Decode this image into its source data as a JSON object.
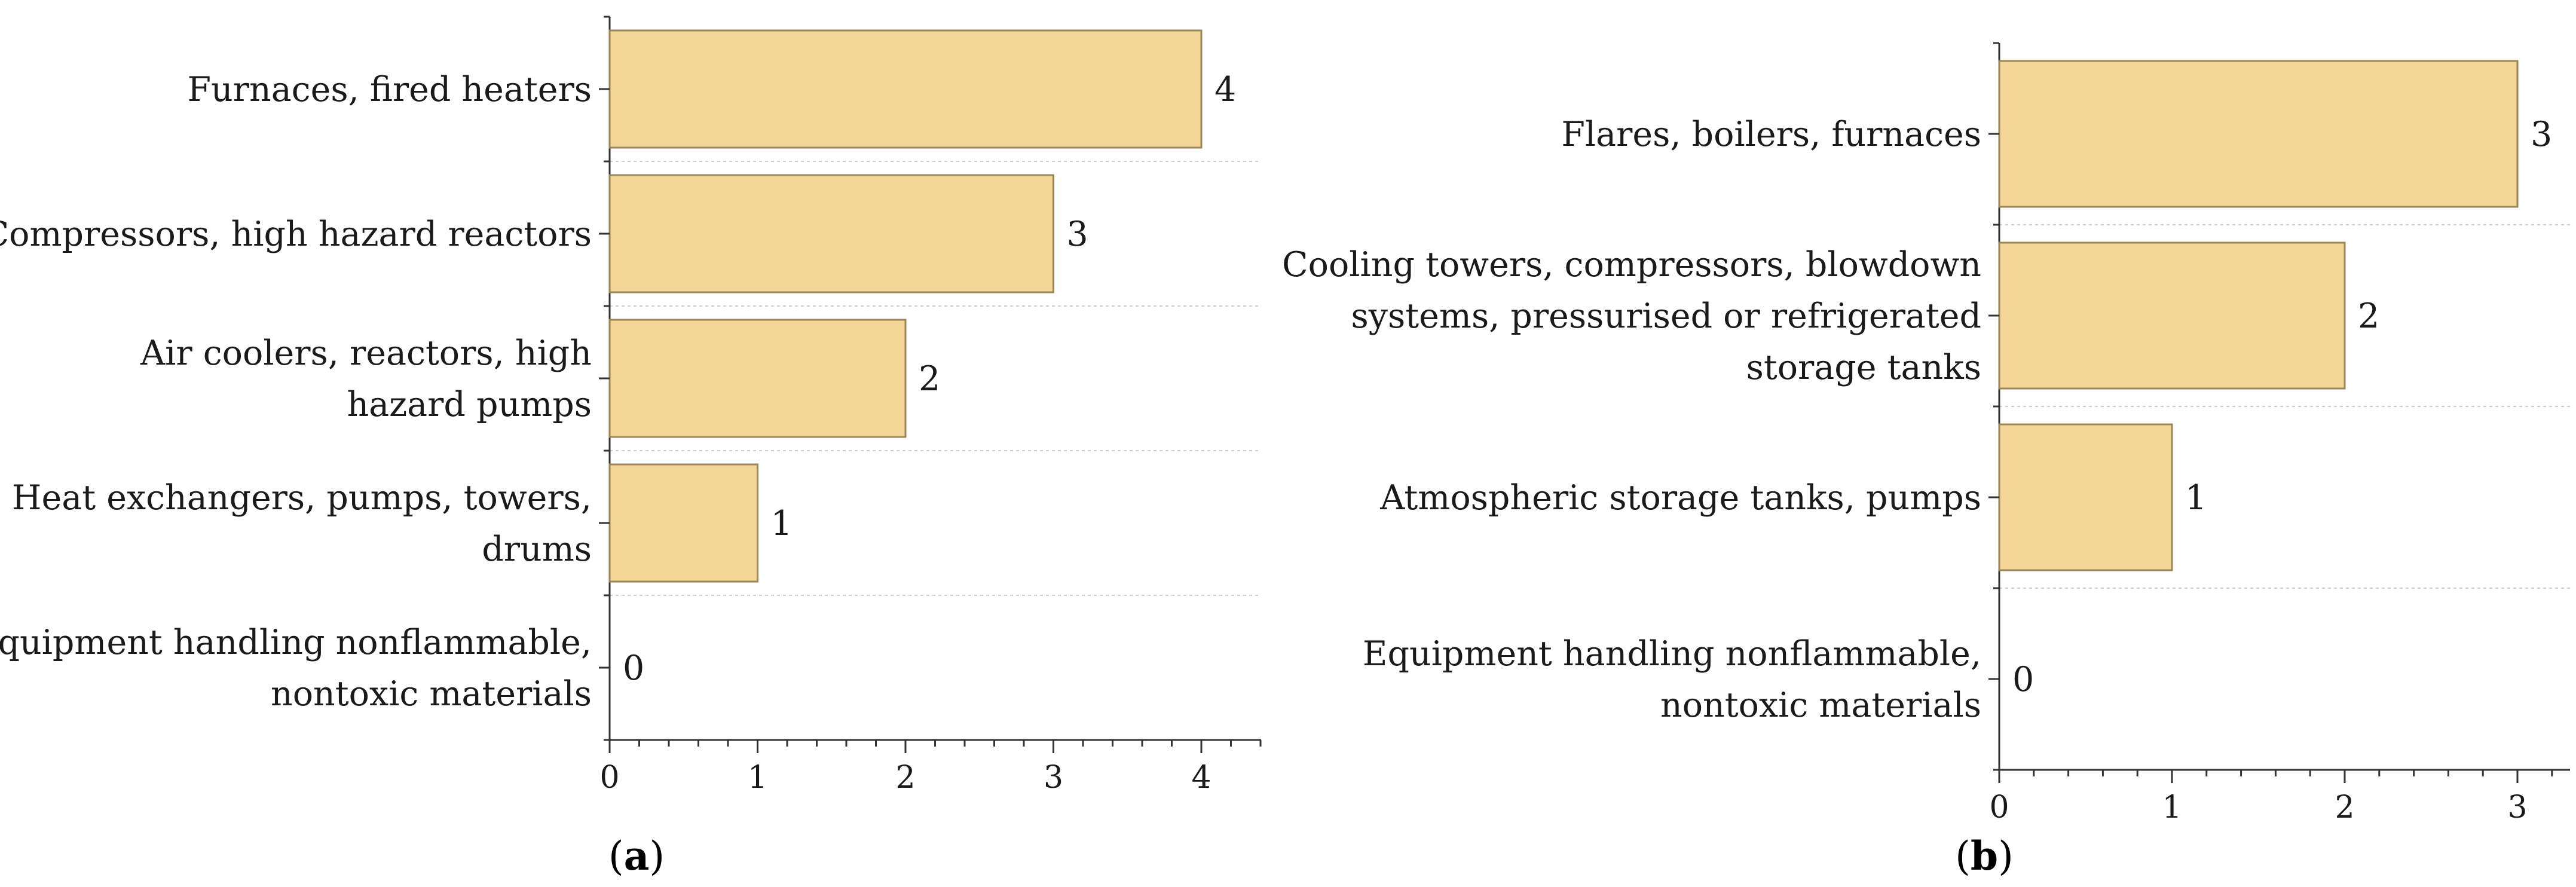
{
  "chart_data": [
    {
      "type": "bar",
      "orientation": "horizontal",
      "panel_label": "a",
      "categories": [
        "Furnaces, fired heaters",
        "Compressors, high hazard reactors",
        "Air coolers, reactors, high hazard pumps",
        "Heat exchangers, pumps, towers, drums",
        "Equipment handling nonflammable, nontoxic materials"
      ],
      "category_lines": [
        [
          "Furnaces, fired heaters"
        ],
        [
          "Compressors, high hazard reactors"
        ],
        [
          "Air coolers, reactors, high",
          "hazard pumps"
        ],
        [
          "Heat exchangers, pumps, towers,",
          "drums"
        ],
        [
          "Equipment handling nonflammable,",
          "nontoxic materials"
        ]
      ],
      "values": [
        4,
        3,
        2,
        1,
        0
      ],
      "xlim": [
        0,
        4.4
      ],
      "xticks": [
        0,
        1,
        2,
        3,
        4
      ],
      "grid": "horizontal dashed separators",
      "bar_color": "#f2d597",
      "bar_edge_color": "#9a8656"
    },
    {
      "type": "bar",
      "orientation": "horizontal",
      "panel_label": "b",
      "categories": [
        "Flares, boilers, furnaces",
        "Cooling towers, compressors, blowdown systems, pressurised or refrigerated storage tanks",
        "Atmospheric storage tanks, pumps",
        "Equipment handling nonflammable, nontoxic materials"
      ],
      "category_lines": [
        [
          "Flares, boilers, furnaces"
        ],
        [
          "Cooling towers, compressors, blowdown",
          "systems, pressurised or refrigerated",
          "storage tanks"
        ],
        [
          "Atmospheric storage tanks, pumps"
        ],
        [
          "Equipment handling nonflammable,",
          "nontoxic materials"
        ]
      ],
      "values": [
        3,
        2,
        1,
        0
      ],
      "xlim": [
        0,
        3.3
      ],
      "xticks": [
        0,
        1,
        2,
        3
      ],
      "grid": "horizontal dashed separators",
      "bar_color": "#f2d597",
      "bar_edge_color": "#9a8656"
    }
  ]
}
